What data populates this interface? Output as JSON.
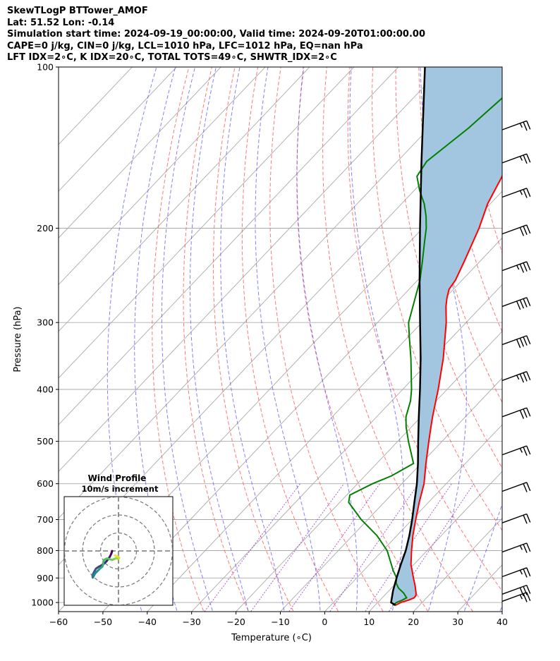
{
  "header": {
    "line1": "SkewTLogP BTTower_AMOF",
    "line2": "Lat: 51.52   Lon: -0.14",
    "line3": "Simulation start time: 2024-09-19_00:00:00, Valid time: 2024-09-20T01:00:00.00",
    "line4": "CAPE=0 j/kg, CIN=0 j/kg, LCL=1010 hPa, LFC=1012 hPa, EQ=nan hPa",
    "line5": "LFT IDX=2∘C, K IDX=20∘C, TOTAL TOTS=49∘C, SHWTR_IDX=2∘C"
  },
  "colors": {
    "temperature": "#ff0000",
    "dewpoint": "#008000",
    "parcel": "#000000",
    "cape_fill": "#a3c6e0",
    "dry_adiabat": "#ff5555",
    "moist_adiabat": "#5555ff",
    "isotherm": "#aaaaaa",
    "mixing_ratio": "#9933cc"
  },
  "chart_data": [
    {
      "type": "line",
      "subtype": "skew-t log-p",
      "xlabel": "Temperature (∘C)",
      "ylabel": "Pressure (hPa)",
      "xlim": [
        -60,
        40
      ],
      "ylim": [
        1040,
        100
      ],
      "y_scale": "log",
      "x_ticks": [
        "−60",
        "−50",
        "−40",
        "−30",
        "−20",
        "−10",
        "0",
        "10",
        "20",
        "30",
        "40"
      ],
      "y_ticks": [
        "100",
        "200",
        "300",
        "400",
        "500",
        "600",
        "700",
        "800",
        "900",
        "1000"
      ],
      "grid": true,
      "series": [
        {
          "key": "temperature",
          "p": [
            1012,
            1000,
            990,
            980,
            970,
            960,
            950,
            930,
            900,
            870,
            850,
            800,
            750,
            700,
            650,
            600,
            550,
            500,
            470,
            450,
            400,
            350,
            300,
            280,
            270,
            260,
            250,
            230,
            200,
            180,
            160,
            150,
            140,
            130,
            120,
            115,
            110,
            100
          ],
          "t": [
            14.6,
            15.2,
            16.4,
            17.2,
            17.1,
            16.6,
            16.0,
            14.8,
            12.8,
            10.8,
            9.4,
            6.5,
            3.6,
            0.8,
            -2.1,
            -5.0,
            -8.9,
            -13.0,
            -15.6,
            -17.4,
            -22.0,
            -27.5,
            -34.5,
            -38.0,
            -39.6,
            -41.0,
            -41.5,
            -43.6,
            -47.3,
            -50.6,
            -53.2,
            -55.7,
            -56.6,
            -58.3,
            -60.1,
            -60.6,
            -62.3,
            -63.8
          ]
        },
        {
          "key": "dewpoint",
          "p": [
            1012,
            1000,
            990,
            980,
            960,
            940,
            920,
            900,
            870,
            850,
            800,
            750,
            700,
            650,
            630,
            600,
            580,
            550,
            500,
            470,
            450,
            420,
            400,
            350,
            320,
            300,
            250,
            230,
            210,
            200,
            190,
            180,
            170,
            160,
            150,
            130,
            120,
            110,
            100
          ],
          "t": [
            14.0,
            14.2,
            15.0,
            15.5,
            13.8,
            11.6,
            10.0,
            9.0,
            6.5,
            5.0,
            1.0,
            -4.5,
            -11.5,
            -18.0,
            -19.3,
            -16.6,
            -14.0,
            -11.7,
            -17.6,
            -21.2,
            -23.4,
            -25.8,
            -28.0,
            -34.8,
            -39.6,
            -43.0,
            -49.5,
            -53.1,
            -57.1,
            -59.2,
            -61.8,
            -64.9,
            -68.8,
            -72.4,
            -73.4,
            -71.1,
            -70.4,
            -69.6,
            -68.9
          ]
        },
        {
          "key": "parcel",
          "p": [
            1012,
            1000,
            950,
            900,
            850,
            800,
            750,
            700,
            650,
            600,
            550,
            500,
            450,
            400,
            350,
            300,
            250,
            200,
            150,
            100
          ],
          "t": [
            14.6,
            13.0,
            10.9,
            9.0,
            7.1,
            5.2,
            2.8,
            0.0,
            -3.2,
            -6.6,
            -10.7,
            -15.4,
            -20.5,
            -26.1,
            -32.6,
            -40.4,
            -49.6,
            -60.6,
            -74.6,
            -94.0
          ]
        }
      ]
    },
    {
      "type": "scatter",
      "title": "Wind Profile",
      "subtitle": "10m/s increment",
      "rings": 3,
      "x": [
        -3.5,
        -4.0,
        -4.7,
        -5.7,
        -6.8,
        -8.0,
        -9.5,
        -11.0,
        -12.5,
        -13.2,
        -14.0,
        -14.4,
        -14.4,
        -14.3,
        -13.8,
        -13.0,
        -12.0,
        -11.0,
        -10.0,
        -9.0,
        -8.5,
        -8.5,
        -8.0,
        -6.5,
        -5.0,
        -3.5,
        -2.0,
        -1.0,
        -0.2,
        0.3,
        0.1,
        -1.0,
        -2.0
      ],
      "y": [
        0.0,
        -1.5,
        -3.0,
        -4.5,
        -5.9,
        -7.0,
        -8.0,
        -8.8,
        -9.8,
        -11.0,
        -12.5,
        -13.5,
        -14.2,
        -14.8,
        -14.0,
        -12.5,
        -11.5,
        -10.5,
        -9.5,
        -8.8,
        -7.5,
        -6.5,
        -5.0,
        -4.2,
        -4.5,
        -5.0,
        -4.3,
        -4.0,
        -4.5,
        -4.0,
        -3.5,
        -3.0,
        -2.5
      ]
    },
    {
      "type": "barbs",
      "p": [
        131,
        151,
        175,
        205,
        240,
        280,
        330,
        385,
        450,
        530,
        620,
        710,
        805,
        895,
        965,
        995
      ],
      "speed_knots": [
        25,
        25,
        25,
        30,
        35,
        40,
        40,
        35,
        30,
        25,
        20,
        20,
        25,
        25,
        30,
        25
      ]
    }
  ]
}
